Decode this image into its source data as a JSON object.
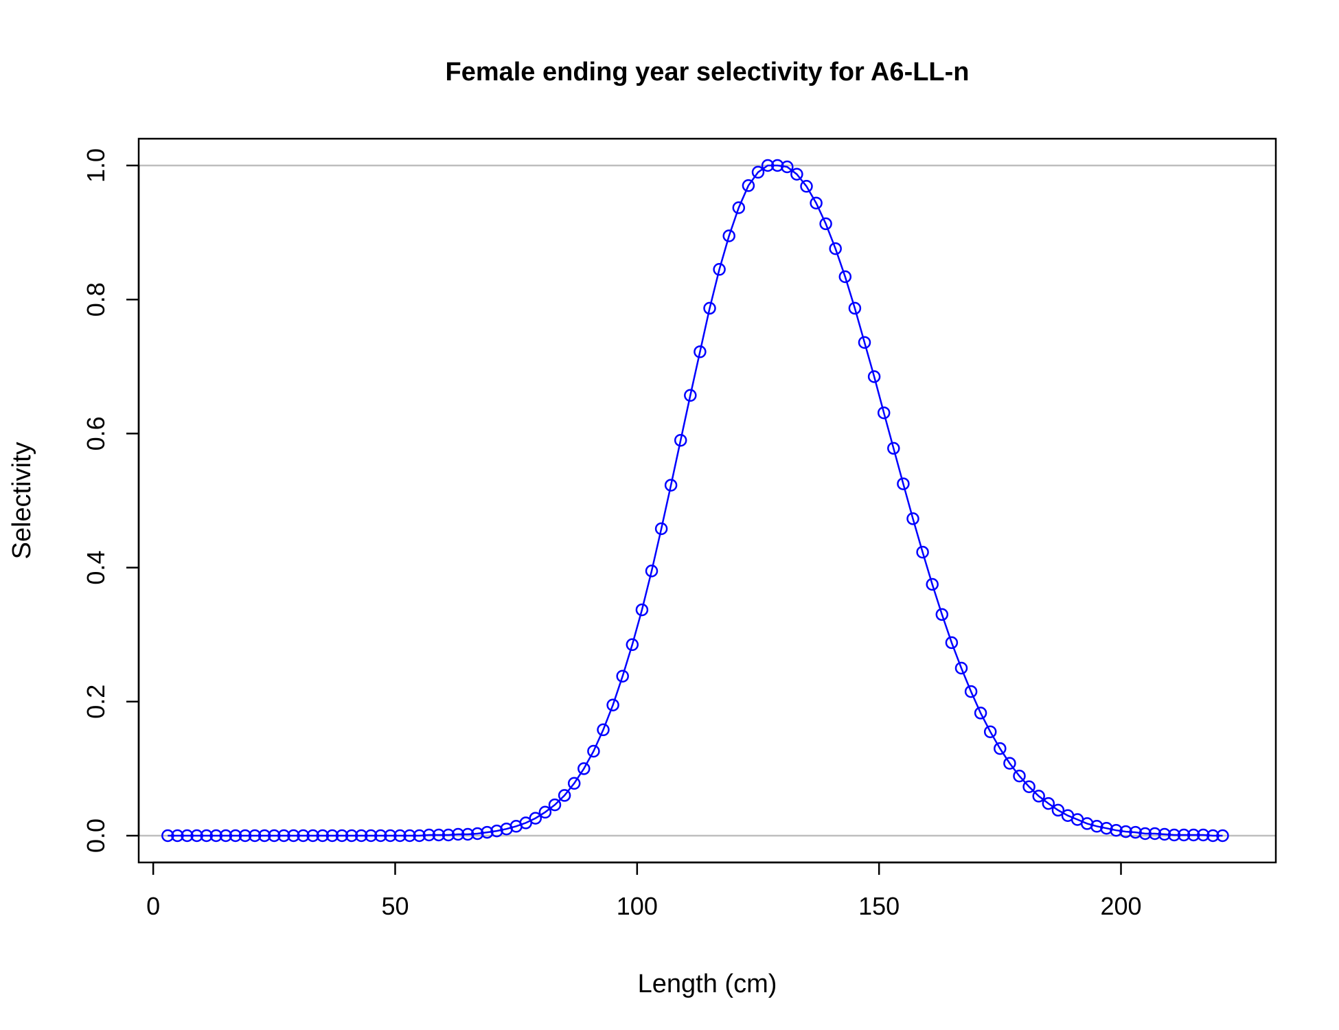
{
  "chart_data": {
    "type": "line",
    "title": "Female ending year selectivity for A6-LL-n",
    "xlabel": "Length (cm)",
    "ylabel": "Selectivity",
    "xlim": [
      -3,
      232
    ],
    "ylim": [
      -0.04,
      1.04
    ],
    "x_ticks": [
      {
        "value": 0,
        "label": "0"
      },
      {
        "value": 50,
        "label": "50"
      },
      {
        "value": 100,
        "label": "100"
      },
      {
        "value": 150,
        "label": "150"
      },
      {
        "value": 200,
        "label": "200"
      }
    ],
    "y_ticks": [
      {
        "value": 0,
        "label": "0.0"
      },
      {
        "value": 0.2,
        "label": "0.2"
      },
      {
        "value": 0.4,
        "label": "0.4"
      },
      {
        "value": 0.6,
        "label": "0.6"
      },
      {
        "value": 0.8,
        "label": "0.8"
      },
      {
        "value": 1.0,
        "label": "1.0"
      }
    ],
    "reference_lines": [
      0,
      1
    ],
    "grid": false,
    "series": [
      {
        "color": "#0000ff",
        "marker": "open-circle",
        "x": [
          3,
          5,
          7,
          9,
          11,
          13,
          15,
          17,
          19,
          21,
          23,
          25,
          27,
          29,
          31,
          33,
          35,
          37,
          39,
          41,
          43,
          45,
          47,
          49,
          51,
          53,
          55,
          57,
          59,
          61,
          63,
          65,
          67,
          69,
          71,
          73,
          75,
          77,
          79,
          81,
          83,
          85,
          87,
          89,
          91,
          93,
          95,
          97,
          99,
          101,
          103,
          105,
          107,
          109,
          111,
          113,
          115,
          117,
          119,
          121,
          123,
          125,
          127,
          129,
          131,
          133,
          135,
          137,
          139,
          141,
          143,
          145,
          147,
          149,
          151,
          153,
          155,
          157,
          159,
          161,
          163,
          165,
          167,
          169,
          171,
          173,
          175,
          177,
          179,
          181,
          183,
          185,
          187,
          189,
          191,
          193,
          195,
          197,
          199,
          201,
          203,
          205,
          207,
          209,
          211,
          213,
          215,
          217,
          219,
          221
        ],
        "y": [
          0,
          0,
          0,
          0,
          0,
          0,
          0,
          0,
          0,
          0,
          0,
          0,
          0,
          0,
          0,
          0,
          0,
          0,
          0,
          0,
          0,
          0,
          0,
          0,
          0,
          0,
          0,
          0.001,
          0.001,
          0.001,
          0.002,
          0.002,
          0.003,
          0.005,
          0.007,
          0.01,
          0.014,
          0.019,
          0.026,
          0.035,
          0.046,
          0.06,
          0.078,
          0.1,
          0.126,
          0.158,
          0.195,
          0.238,
          0.285,
          0.337,
          0.395,
          0.458,
          0.523,
          0.59,
          0.657,
          0.722,
          0.787,
          0.845,
          0.895,
          0.937,
          0.97,
          0.99,
          1.0,
          1.0,
          0.998,
          0.987,
          0.969,
          0.944,
          0.913,
          0.876,
          0.834,
          0.787,
          0.736,
          0.685,
          0.631,
          0.578,
          0.525,
          0.473,
          0.423,
          0.375,
          0.33,
          0.288,
          0.25,
          0.215,
          0.183,
          0.155,
          0.13,
          0.108,
          0.089,
          0.073,
          0.059,
          0.048,
          0.038,
          0.03,
          0.024,
          0.018,
          0.014,
          0.011,
          0.008,
          0.006,
          0.005,
          0.003,
          0.003,
          0.002,
          0.001,
          0.001,
          0.001,
          0.001,
          0,
          0
        ]
      }
    ]
  }
}
